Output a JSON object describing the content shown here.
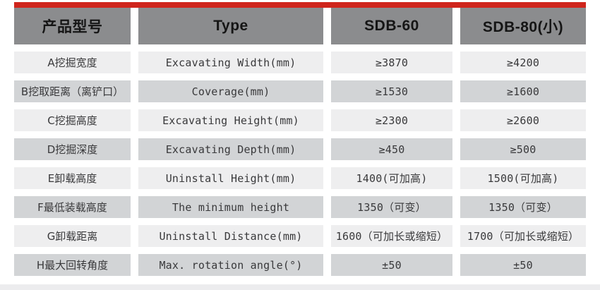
{
  "table": {
    "headers": {
      "model": "产品型号",
      "type": "Type",
      "sdb60": "SDB-60",
      "sdb80": "SDB-80(小)"
    },
    "rows": [
      {
        "label": "A挖掘宽度",
        "type": "Excavating Width(mm)",
        "sdb60": "≥3870",
        "sdb80": "≥4200"
      },
      {
        "label": "B挖取距离（离铲口）",
        "type": "Coverage(mm)",
        "sdb60": "≥1530",
        "sdb80": "≥1600"
      },
      {
        "label": "C挖掘高度",
        "type": "Excavating Height(mm)",
        "sdb60": "≥2300",
        "sdb80": "≥2600"
      },
      {
        "label": "D挖掘深度",
        "type": "Excavating Depth(mm)",
        "sdb60": "≥450",
        "sdb80": "≥500"
      },
      {
        "label": "E卸载高度",
        "type": "Uninstall Height(mm)",
        "sdb60": "1400(可加高)",
        "sdb80": "1500(可加高)"
      },
      {
        "label": "F最低装载高度",
        "type": "The minimum height",
        "sdb60": "1350（可变）",
        "sdb80": "1350（可变）"
      },
      {
        "label": "G卸载距离",
        "type": "Uninstall Distance(mm)",
        "sdb60": "1600（可加长或缩短）",
        "sdb80": "1700（可加长或缩短）"
      },
      {
        "label": "H最大回转角度",
        "type": "Max. rotation angle(°)",
        "sdb60": "±50",
        "sdb80": "±50"
      }
    ],
    "colors": {
      "accent_red": "#cf251c",
      "header_gray": "#8b8c8e",
      "row_light": "#eeeeef",
      "row_dark": "#d2d4d6"
    }
  }
}
